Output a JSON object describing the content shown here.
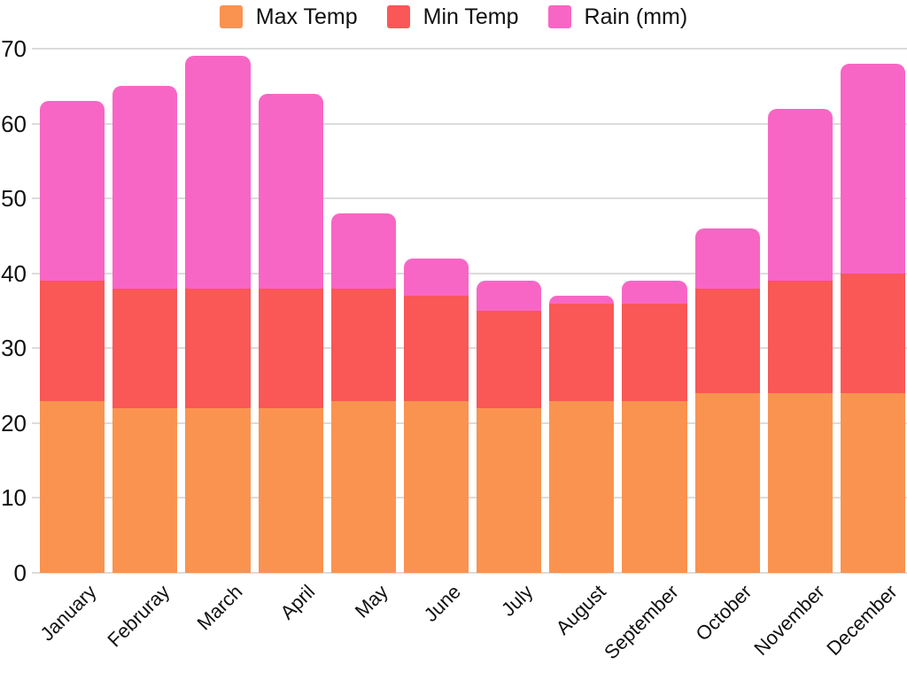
{
  "chart_data": {
    "type": "bar",
    "stacked": true,
    "title": "",
    "xlabel": "",
    "ylabel": "",
    "categories": [
      "January",
      "Februray",
      "March",
      "April",
      "May",
      "June",
      "July",
      "August",
      "September",
      "October",
      "November",
      "December"
    ],
    "series": [
      {
        "name": "Max Temp",
        "color": "#FA9350",
        "values": [
          23,
          22,
          22,
          22,
          23,
          23,
          22,
          23,
          23,
          24,
          24,
          24
        ]
      },
      {
        "name": "Min Temp",
        "color": "#FA5757",
        "values": [
          16,
          16,
          16,
          16,
          15,
          14,
          13,
          13,
          13,
          14,
          15,
          16
        ]
      },
      {
        "name": "Rain (mm)",
        "color": "#F866C5",
        "values": [
          24,
          27,
          31,
          26,
          10,
          5,
          4,
          1,
          3,
          8,
          23,
          28
        ]
      }
    ],
    "stack_totals": [
      63,
      65,
      69,
      64,
      48,
      42,
      39,
      37,
      39,
      46,
      62,
      68
    ],
    "yticks": [
      0,
      10,
      20,
      30,
      40,
      50,
      60,
      70
    ],
    "ylim": [
      0,
      70
    ],
    "grid": "horizontal",
    "legend_position": "top-center",
    "x_label_rotation": -45
  },
  "colors": {
    "background": "#FFFFFF",
    "gridline": "#DCDCDC",
    "axis_text": "#111111"
  }
}
